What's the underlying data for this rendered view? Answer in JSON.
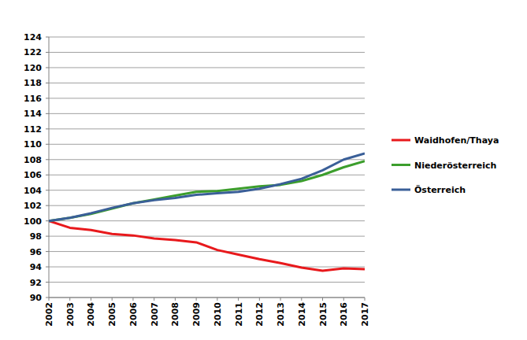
{
  "chart_data": {
    "type": "line",
    "x": [
      2002,
      2003,
      2004,
      2005,
      2006,
      2007,
      2008,
      2009,
      2010,
      2011,
      2012,
      2013,
      2014,
      2015,
      2016,
      2017
    ],
    "xlim": [
      2002,
      2017
    ],
    "xticks": [
      2002,
      2003,
      2004,
      2005,
      2006,
      2007,
      2008,
      2009,
      2010,
      2011,
      2012,
      2013,
      2014,
      2015,
      2016,
      2017
    ],
    "ylim": [
      90,
      124
    ],
    "yticks": [
      90,
      92,
      94,
      96,
      98,
      100,
      102,
      104,
      106,
      108,
      110,
      112,
      114,
      116,
      118,
      120,
      122,
      124
    ],
    "grid": true,
    "legend": "right",
    "series": [
      {
        "name": "Waidhofen/Thaya",
        "color": "#e8191c",
        "values": [
          100,
          99.1,
          98.8,
          98.3,
          98.1,
          97.7,
          97.5,
          97.2,
          96.2,
          95.6,
          95.0,
          94.5,
          93.9,
          93.5,
          93.8,
          93.7
        ]
      },
      {
        "name": "Niederösterreich",
        "color": "#3c9e2c",
        "values": [
          100,
          100.4,
          100.9,
          101.6,
          102.3,
          102.8,
          103.3,
          103.8,
          103.9,
          104.2,
          104.5,
          104.7,
          105.2,
          106.0,
          107.0,
          107.8
        ]
      },
      {
        "name": "Österreich",
        "color": "#3a5f98",
        "values": [
          100,
          100.4,
          101.0,
          101.7,
          102.3,
          102.7,
          103.0,
          103.4,
          103.6,
          103.8,
          104.2,
          104.8,
          105.5,
          106.6,
          108.0,
          108.8
        ]
      }
    ]
  }
}
